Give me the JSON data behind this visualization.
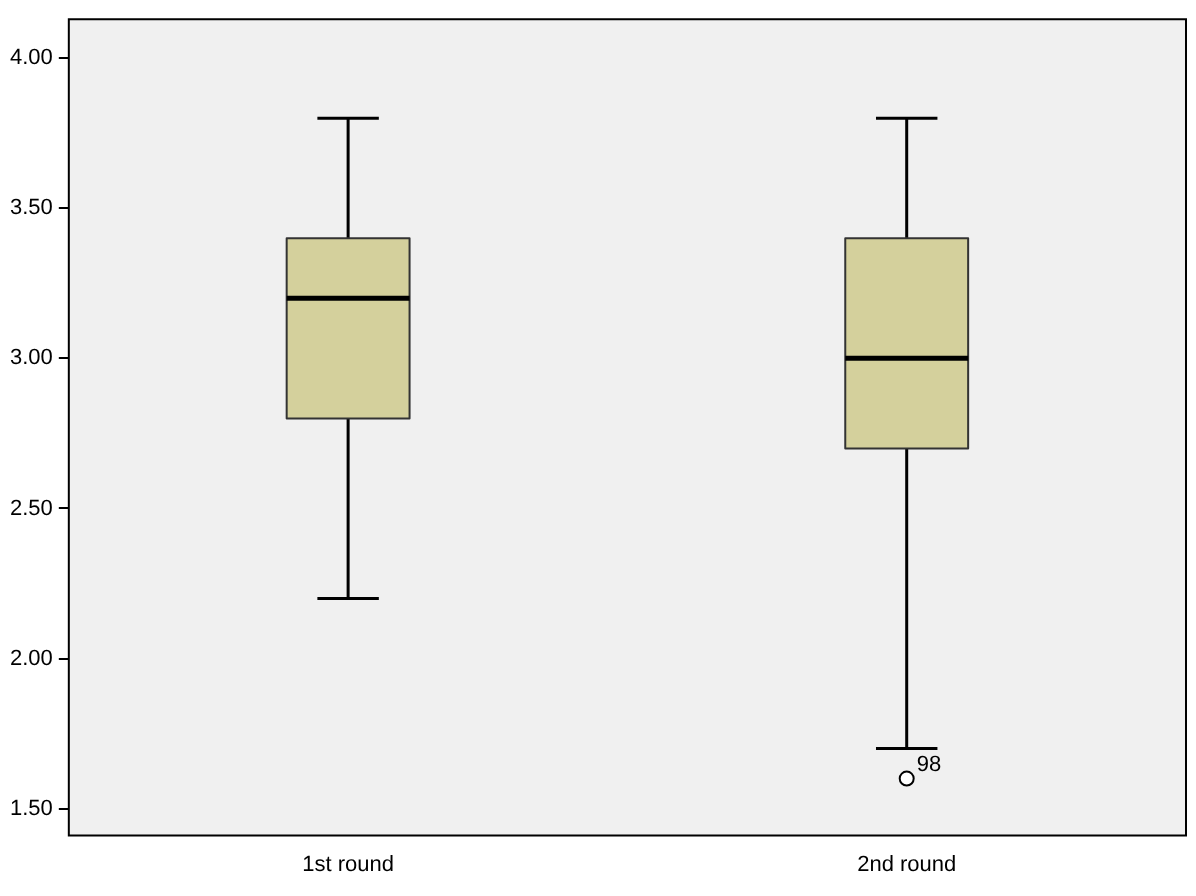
{
  "chart_data": {
    "type": "box",
    "categories": [
      "1st round",
      "2nd round"
    ],
    "boxes": [
      {
        "low": 2.2,
        "q1": 2.8,
        "median": 3.2,
        "q3": 3.4,
        "high": 3.8
      },
      {
        "low": 1.7,
        "q1": 2.7,
        "median": 3.0,
        "q3": 3.4,
        "high": 3.8,
        "outliers": [
          1.6
        ]
      }
    ],
    "color": "#d4d09c",
    "ylim": [
      1.41,
      4.13
    ],
    "yticks": [
      {
        "value": 1.5,
        "label": "1.50"
      },
      {
        "value": 2,
        "label": "2.00"
      },
      {
        "value": 2.5,
        "label": "2.50"
      },
      {
        "value": 3,
        "label": "3.00"
      },
      {
        "value": 3.5,
        "label": "3.50"
      },
      {
        "value": 4,
        "label": "4.00"
      }
    ],
    "annotations": [
      "98"
    ],
    "grid": false,
    "legend": false
  }
}
